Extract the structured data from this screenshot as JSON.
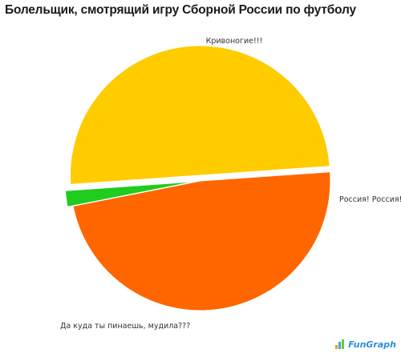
{
  "title": "Болельщик, смотрящий игру Сборной России по футболу",
  "chart_data": {
    "type": "pie",
    "title": "Болельщик, смотрящий игру Сборной России по футболу",
    "slices": [
      {
        "label": "Кривоногие!!!",
        "value": 48,
        "color": "#ff6600",
        "exploded": false
      },
      {
        "label": "Россия! Россия!",
        "value": 2,
        "color": "#1fcc1f",
        "exploded": true
      },
      {
        "label": "Да куда ты пинаешь, мудила???",
        "value": 50,
        "color": "#ffcc00",
        "exploded": true
      }
    ],
    "legend": "none"
  },
  "watermark": {
    "text": "FunGraph",
    "icon": "fungraph-logo-icon"
  }
}
